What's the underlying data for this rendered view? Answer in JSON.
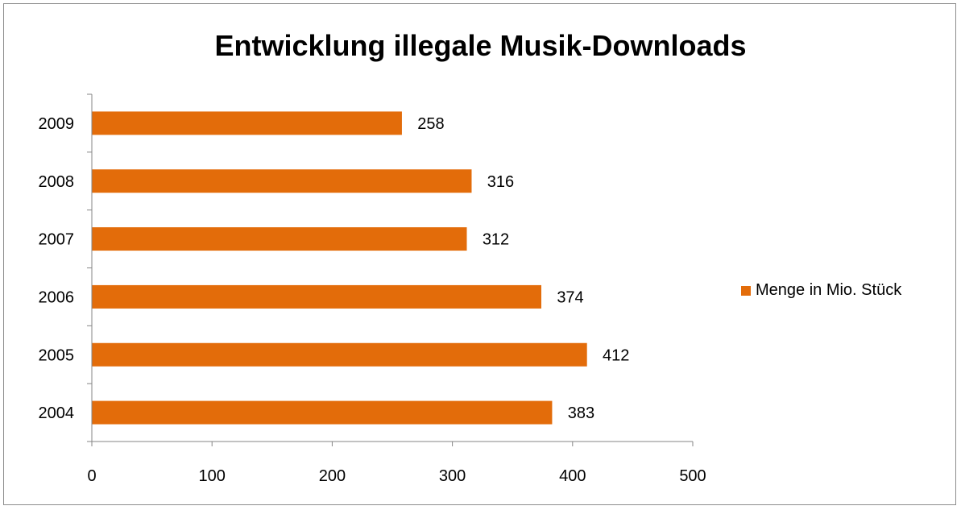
{
  "chart_data": {
    "type": "bar",
    "orientation": "horizontal",
    "title": "Entwicklung illegale Musik-Downloads",
    "xlabel": "",
    "ylabel": "",
    "categories": [
      "2004",
      "2005",
      "2006",
      "2007",
      "2008",
      "2009"
    ],
    "series": [
      {
        "name": "Menge in Mio. Stück",
        "values": [
          383,
          412,
          374,
          312,
          316,
          258
        ]
      }
    ],
    "xlim": [
      0,
      500
    ],
    "xticks": [
      "0",
      "100",
      "200",
      "300",
      "400",
      "500"
    ],
    "data_labels": true,
    "grid": false,
    "legend_position": "right",
    "colors": {
      "bar": "#E36C0A",
      "axis": "#868686",
      "frame": "#8C8C8C"
    }
  }
}
